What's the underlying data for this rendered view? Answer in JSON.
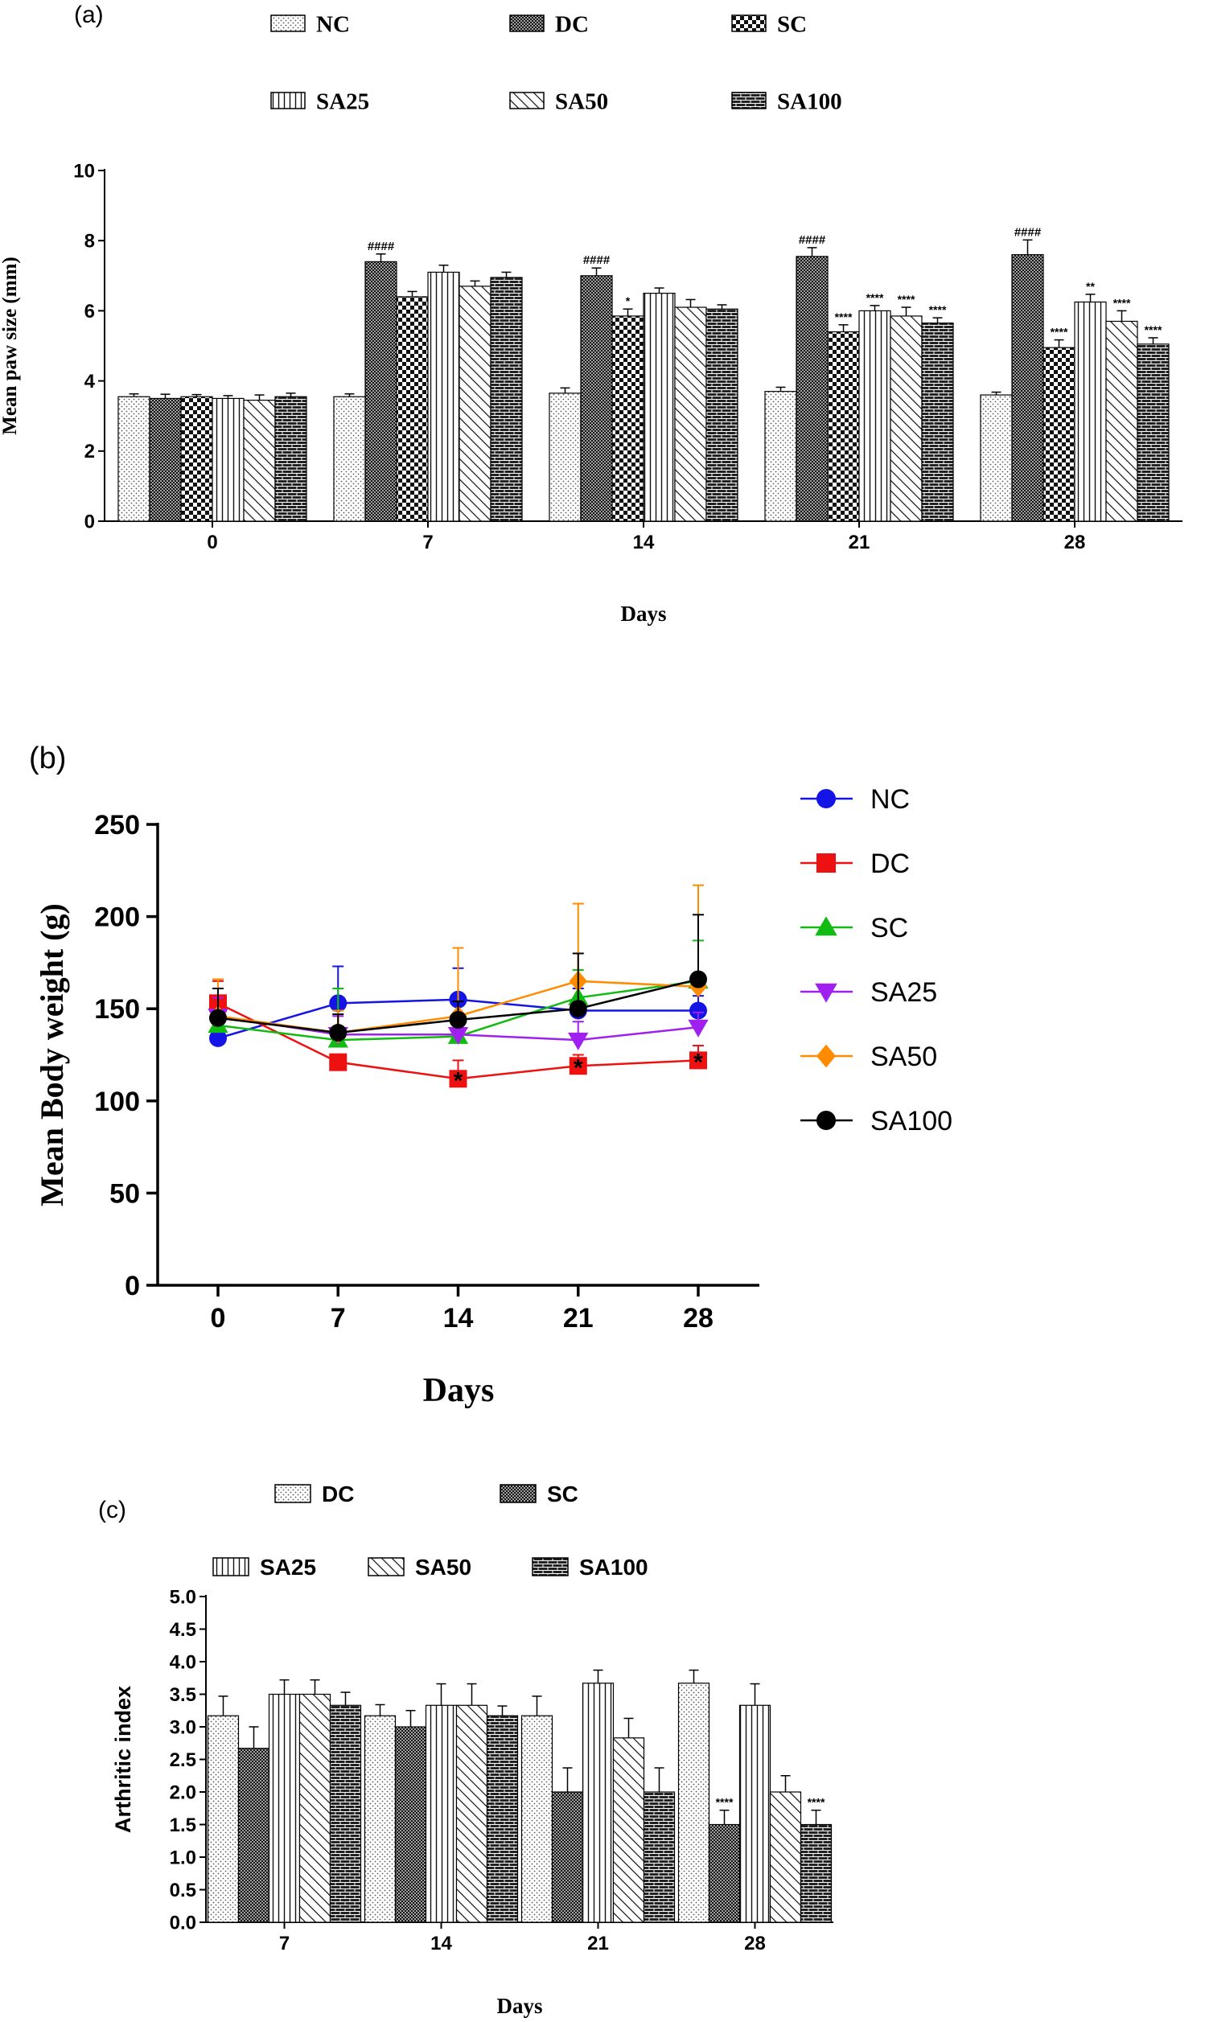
{
  "panels": {
    "a": "(a)",
    "b": "(b)",
    "c": "(c)"
  },
  "chart_data": [
    {
      "type": "bar",
      "panel": "(a)",
      "title": "",
      "xlabel": "Days",
      "ylabel": "Mean paw size (mm)",
      "ylim": [
        0,
        10
      ],
      "yticks": [
        "0",
        "2",
        "4",
        "6",
        "8",
        "10"
      ],
      "categories": [
        "0",
        "7",
        "14",
        "21",
        "28"
      ],
      "legend_rows": [
        [
          "NC",
          "DC",
          "SC"
        ],
        [
          "SA25",
          "SA50",
          "SA100"
        ]
      ],
      "legend_position": "top",
      "series": [
        {
          "name": "NC",
          "pattern": "dots",
          "values": [
            3.55,
            3.55,
            3.65,
            3.7,
            3.6
          ],
          "errors": [
            0.08,
            0.08,
            0.15,
            0.12,
            0.08
          ],
          "annotations": [
            "",
            "",
            "",
            "",
            ""
          ]
        },
        {
          "name": "DC",
          "pattern": "crosshatch",
          "values": [
            3.5,
            7.4,
            7.0,
            7.55,
            7.6
          ],
          "errors": [
            0.12,
            0.22,
            0.22,
            0.25,
            0.42
          ],
          "annotations": [
            "",
            "####",
            "####",
            "####",
            "####"
          ]
        },
        {
          "name": "SC",
          "pattern": "checker",
          "values": [
            3.55,
            6.4,
            5.85,
            5.4,
            4.95
          ],
          "errors": [
            0.06,
            0.15,
            0.2,
            0.2,
            0.22
          ],
          "annotations": [
            "",
            "",
            "*",
            "****",
            "****"
          ]
        },
        {
          "name": "SA25",
          "pattern": "vlines",
          "values": [
            3.5,
            7.1,
            6.5,
            6.0,
            6.25
          ],
          "errors": [
            0.08,
            0.2,
            0.15,
            0.15,
            0.22
          ],
          "annotations": [
            "",
            "",
            "",
            "****",
            "**"
          ]
        },
        {
          "name": "SA50",
          "pattern": "diagonal",
          "values": [
            3.45,
            6.7,
            6.1,
            5.85,
            5.7
          ],
          "errors": [
            0.15,
            0.15,
            0.22,
            0.25,
            0.3
          ],
          "annotations": [
            "",
            "",
            "",
            "****",
            "****"
          ]
        },
        {
          "name": "SA100",
          "pattern": "brick",
          "values": [
            3.55,
            6.95,
            6.05,
            5.65,
            5.05
          ],
          "errors": [
            0.1,
            0.15,
            0.12,
            0.15,
            0.18
          ],
          "annotations": [
            "",
            "",
            "",
            "****",
            "****"
          ]
        }
      ]
    },
    {
      "type": "line",
      "panel": "(b)",
      "title": "",
      "xlabel": "Days",
      "ylabel": "Mean Body weight (g)",
      "x": [
        0,
        7,
        14,
        21,
        28
      ],
      "xticks": [
        "0",
        "7",
        "14",
        "21",
        "28"
      ],
      "ylim": [
        0,
        250
      ],
      "yticks": [
        "0",
        "50",
        "100",
        "150",
        "200",
        "250"
      ],
      "legend_position": "right",
      "series": [
        {
          "name": "NC",
          "color": "#1414e6",
          "marker": "circle",
          "values": [
            134,
            153,
            155,
            149,
            149
          ],
          "errors": [
            5,
            20,
            17,
            12,
            8
          ]
        },
        {
          "name": "DC",
          "color": "#ee1111",
          "marker": "square",
          "values": [
            153,
            121,
            112,
            119,
            122
          ],
          "errors": [
            12,
            4,
            10,
            6,
            8
          ]
        },
        {
          "name": "SC",
          "color": "#11bb11",
          "marker": "triangle-up",
          "values": [
            141,
            133,
            135,
            156,
            165
          ],
          "errors": [
            8,
            28,
            10,
            15,
            22
          ]
        },
        {
          "name": "SA25",
          "color": "#a020f0",
          "marker": "triangle-down",
          "values": [
            146,
            136,
            136,
            133,
            140
          ],
          "errors": [
            10,
            10,
            10,
            10,
            8
          ]
        },
        {
          "name": "SA50",
          "color": "#ff8c00",
          "marker": "diamond",
          "values": [
            146,
            137,
            146,
            165,
            162
          ],
          "errors": [
            20,
            12,
            37,
            42,
            55
          ]
        },
        {
          "name": "SA100",
          "color": "#000000",
          "marker": "circle",
          "values": [
            145,
            137,
            144,
            150,
            166
          ],
          "errors": [
            16,
            10,
            10,
            30,
            35
          ]
        }
      ],
      "annotations": [
        {
          "x": 14,
          "series": "DC",
          "text": "*"
        },
        {
          "x": 21,
          "series": "DC",
          "text": "*"
        },
        {
          "x": 28,
          "series": "DC",
          "text": "*"
        }
      ]
    },
    {
      "type": "bar",
      "panel": "(c)",
      "title": "",
      "xlabel": "Days",
      "ylabel": "Arthritic index",
      "ylim": [
        0,
        5
      ],
      "yticks": [
        "0.0",
        "0.5",
        "1.0",
        "1.5",
        "2.0",
        "2.5",
        "3.0",
        "3.5",
        "4.0",
        "4.5",
        "5.0"
      ],
      "categories": [
        "7",
        "14",
        "21",
        "28"
      ],
      "legend_rows": [
        [
          "DC",
          "SC"
        ],
        [
          "SA25",
          "SA50",
          "SA100"
        ]
      ],
      "legend_position": "top",
      "series": [
        {
          "name": "DC",
          "pattern": "dots",
          "values": [
            3.17,
            3.17,
            3.17,
            3.67
          ],
          "errors": [
            0.3,
            0.17,
            0.3,
            0.2
          ],
          "annotations": [
            "",
            "",
            "",
            ""
          ]
        },
        {
          "name": "SC",
          "pattern": "crosshatch",
          "values": [
            2.67,
            3.0,
            2.0,
            1.5
          ],
          "errors": [
            0.33,
            0.25,
            0.37,
            0.22
          ],
          "annotations": [
            "",
            "",
            "",
            "****"
          ]
        },
        {
          "name": "SA25",
          "pattern": "vlines",
          "values": [
            3.5,
            3.33,
            3.67,
            3.33
          ],
          "errors": [
            0.22,
            0.33,
            0.2,
            0.33
          ],
          "annotations": [
            "",
            "",
            "",
            ""
          ]
        },
        {
          "name": "SA50",
          "pattern": "diagonal",
          "values": [
            3.5,
            3.33,
            2.83,
            2.0
          ],
          "errors": [
            0.22,
            0.33,
            0.3,
            0.25
          ],
          "annotations": [
            "",
            "",
            "",
            ""
          ]
        },
        {
          "name": "SA100",
          "pattern": "brick",
          "values": [
            3.33,
            3.17,
            2.0,
            1.5
          ],
          "errors": [
            0.2,
            0.15,
            0.37,
            0.22
          ],
          "annotations": [
            "",
            "",
            "",
            "****"
          ]
        }
      ]
    }
  ]
}
